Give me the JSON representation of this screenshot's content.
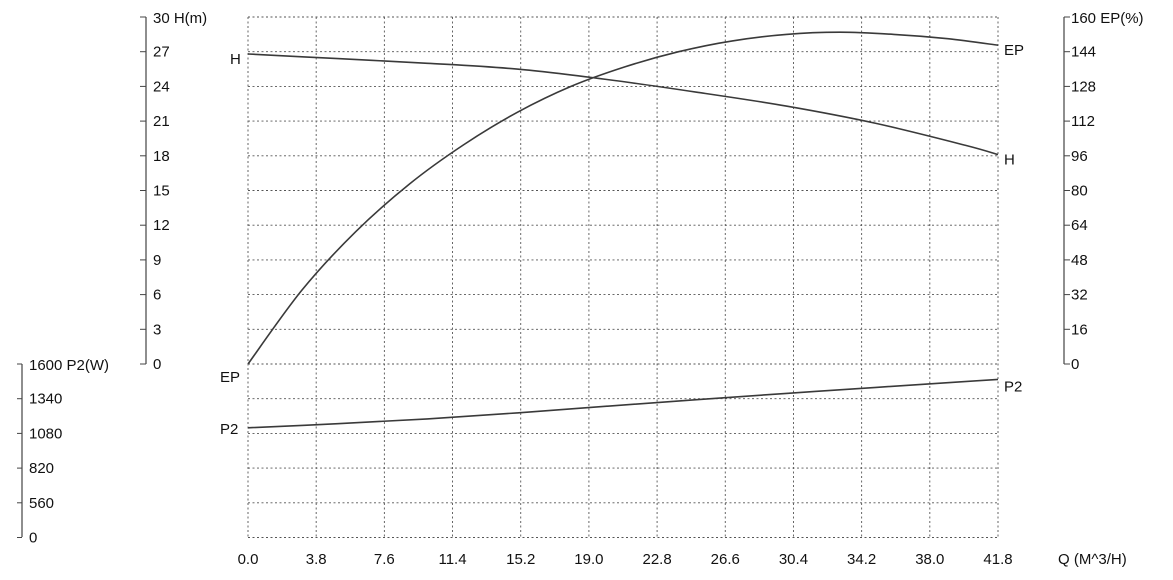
{
  "chart_data": {
    "type": "line",
    "x_axis": {
      "label": "Q (M^3/H)",
      "ticks": [
        "0.0",
        "3.8",
        "7.6",
        "11.4",
        "15.2",
        "19.0",
        "22.8",
        "26.6",
        "30.4",
        "34.2",
        "38.0",
        "41.8"
      ],
      "range": [
        0,
        41.8
      ]
    },
    "y_axes": [
      {
        "id": "H",
        "label": "30 H(m)",
        "ticks": [
          "27",
          "24",
          "21",
          "18",
          "15",
          "12",
          "9",
          "6",
          "3",
          "0"
        ],
        "range": [
          0,
          30
        ]
      },
      {
        "id": "EP",
        "label": "160 EP(%)",
        "ticks": [
          "144",
          "128",
          "112",
          "96",
          "80",
          "64",
          "48",
          "32",
          "16",
          "0"
        ],
        "range": [
          0,
          160
        ]
      },
      {
        "id": "P2",
        "label": "1600 P2(W)",
        "ticks": [
          "1340",
          "1080",
          "820",
          "560",
          "0"
        ],
        "tick_values": [
          1340,
          1080,
          820,
          560,
          0
        ],
        "range": [
          0,
          1600
        ]
      }
    ],
    "grid": true,
    "series": [
      {
        "name": "H",
        "axis": "H",
        "start_label": "H",
        "end_label": "H",
        "x": [
          0,
          5,
          10,
          15,
          20,
          25,
          30,
          35,
          40,
          41.8
        ],
        "values": [
          26.8,
          26.4,
          26.0,
          25.5,
          24.6,
          23.5,
          22.3,
          20.8,
          18.9,
          18.1
        ]
      },
      {
        "name": "EP",
        "axis": "EP",
        "start_label": "EP",
        "end_label": "EP",
        "x": [
          0,
          3,
          6,
          9,
          12,
          15,
          18,
          21,
          24,
          27,
          30,
          33,
          36,
          39,
          41.8
        ],
        "values": [
          0,
          34,
          61,
          83,
          101,
          116,
          128,
          137,
          144,
          149,
          152,
          153,
          152,
          150,
          147
        ]
      },
      {
        "name": "P2",
        "axis": "P2",
        "start_label": "P2",
        "end_label": "P2",
        "x": [
          0,
          5,
          10,
          15,
          20,
          25,
          30,
          35,
          41.8
        ],
        "values": [
          1010,
          1048,
          1092,
          1148,
          1210,
          1270,
          1328,
          1384,
          1458
        ]
      }
    ]
  }
}
